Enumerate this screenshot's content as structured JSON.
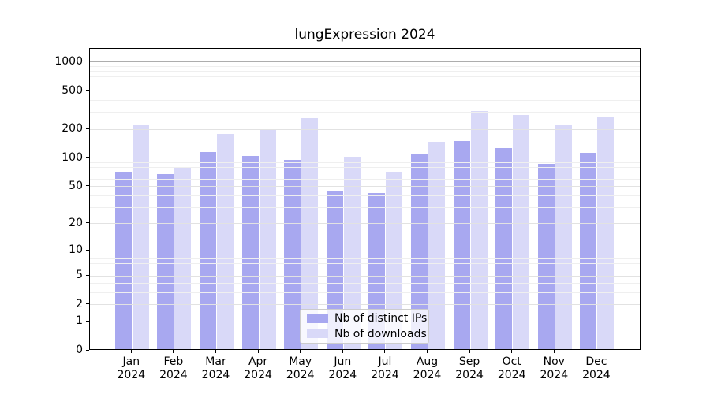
{
  "chart_data": {
    "type": "bar",
    "title": "lungExpression 2024",
    "x_tick_year": "2024",
    "categories": [
      "Jan",
      "Feb",
      "Mar",
      "Apr",
      "May",
      "Jun",
      "Jul",
      "Aug",
      "Sep",
      "Oct",
      "Nov",
      "Dec"
    ],
    "series": [
      {
        "name": "Nb of distinct IPs",
        "color": "#a8a8f0",
        "values": [
          72,
          68,
          116,
          105,
          96,
          45,
          43,
          112,
          150,
          128,
          87,
          114
        ]
      },
      {
        "name": "Nb of downloads",
        "color": "#d9d9f8",
        "values": [
          220,
          81,
          180,
          200,
          260,
          103,
          71,
          148,
          310,
          280,
          222,
          268
        ]
      }
    ],
    "y_ticks": [
      0,
      1,
      2,
      5,
      10,
      20,
      50,
      100,
      200,
      500,
      1000
    ],
    "y_scale": "log1p",
    "ylim": [
      0,
      1380
    ],
    "grid": true,
    "legend_position": "lower-center",
    "grid_colors": {
      "major": "#adadad",
      "labeled_minor": "#e2e2e2",
      "minor": "#efefef"
    }
  }
}
